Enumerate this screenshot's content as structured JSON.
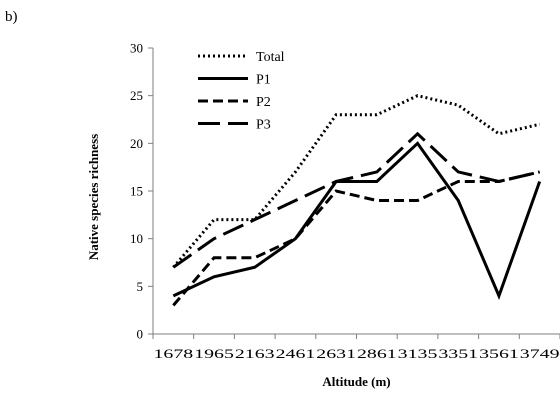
{
  "panel_label": "b)",
  "chart_data": {
    "type": "line",
    "title": "",
    "xlabel": "Altitude  (m)",
    "ylabel": "Native  species richness",
    "categories": [
      "1678",
      "1965",
      "2163",
      "2461",
      "2631",
      "2861",
      "3135",
      "3351",
      "3561",
      "3749"
    ],
    "ylim": [
      0,
      30
    ],
    "yticks": [
      0,
      5,
      10,
      15,
      20,
      25,
      30
    ],
    "grid": false,
    "legend_position": "top-left",
    "series": [
      {
        "name": "Total",
        "dash": "dotted",
        "values": [
          7,
          12,
          12,
          17,
          23,
          23,
          25,
          24,
          21,
          22
        ]
      },
      {
        "name": "P1",
        "dash": "solid",
        "values": [
          4,
          6,
          7,
          10,
          16,
          16,
          20,
          14,
          4,
          16
        ]
      },
      {
        "name": "P2",
        "dash": "dashed",
        "values": [
          3,
          8,
          8,
          10,
          15,
          14,
          14,
          16,
          16,
          17
        ]
      },
      {
        "name": "P3",
        "dash": "longdash",
        "values": [
          7,
          10,
          12,
          14,
          16,
          17,
          21,
          17,
          16,
          17
        ]
      }
    ]
  }
}
